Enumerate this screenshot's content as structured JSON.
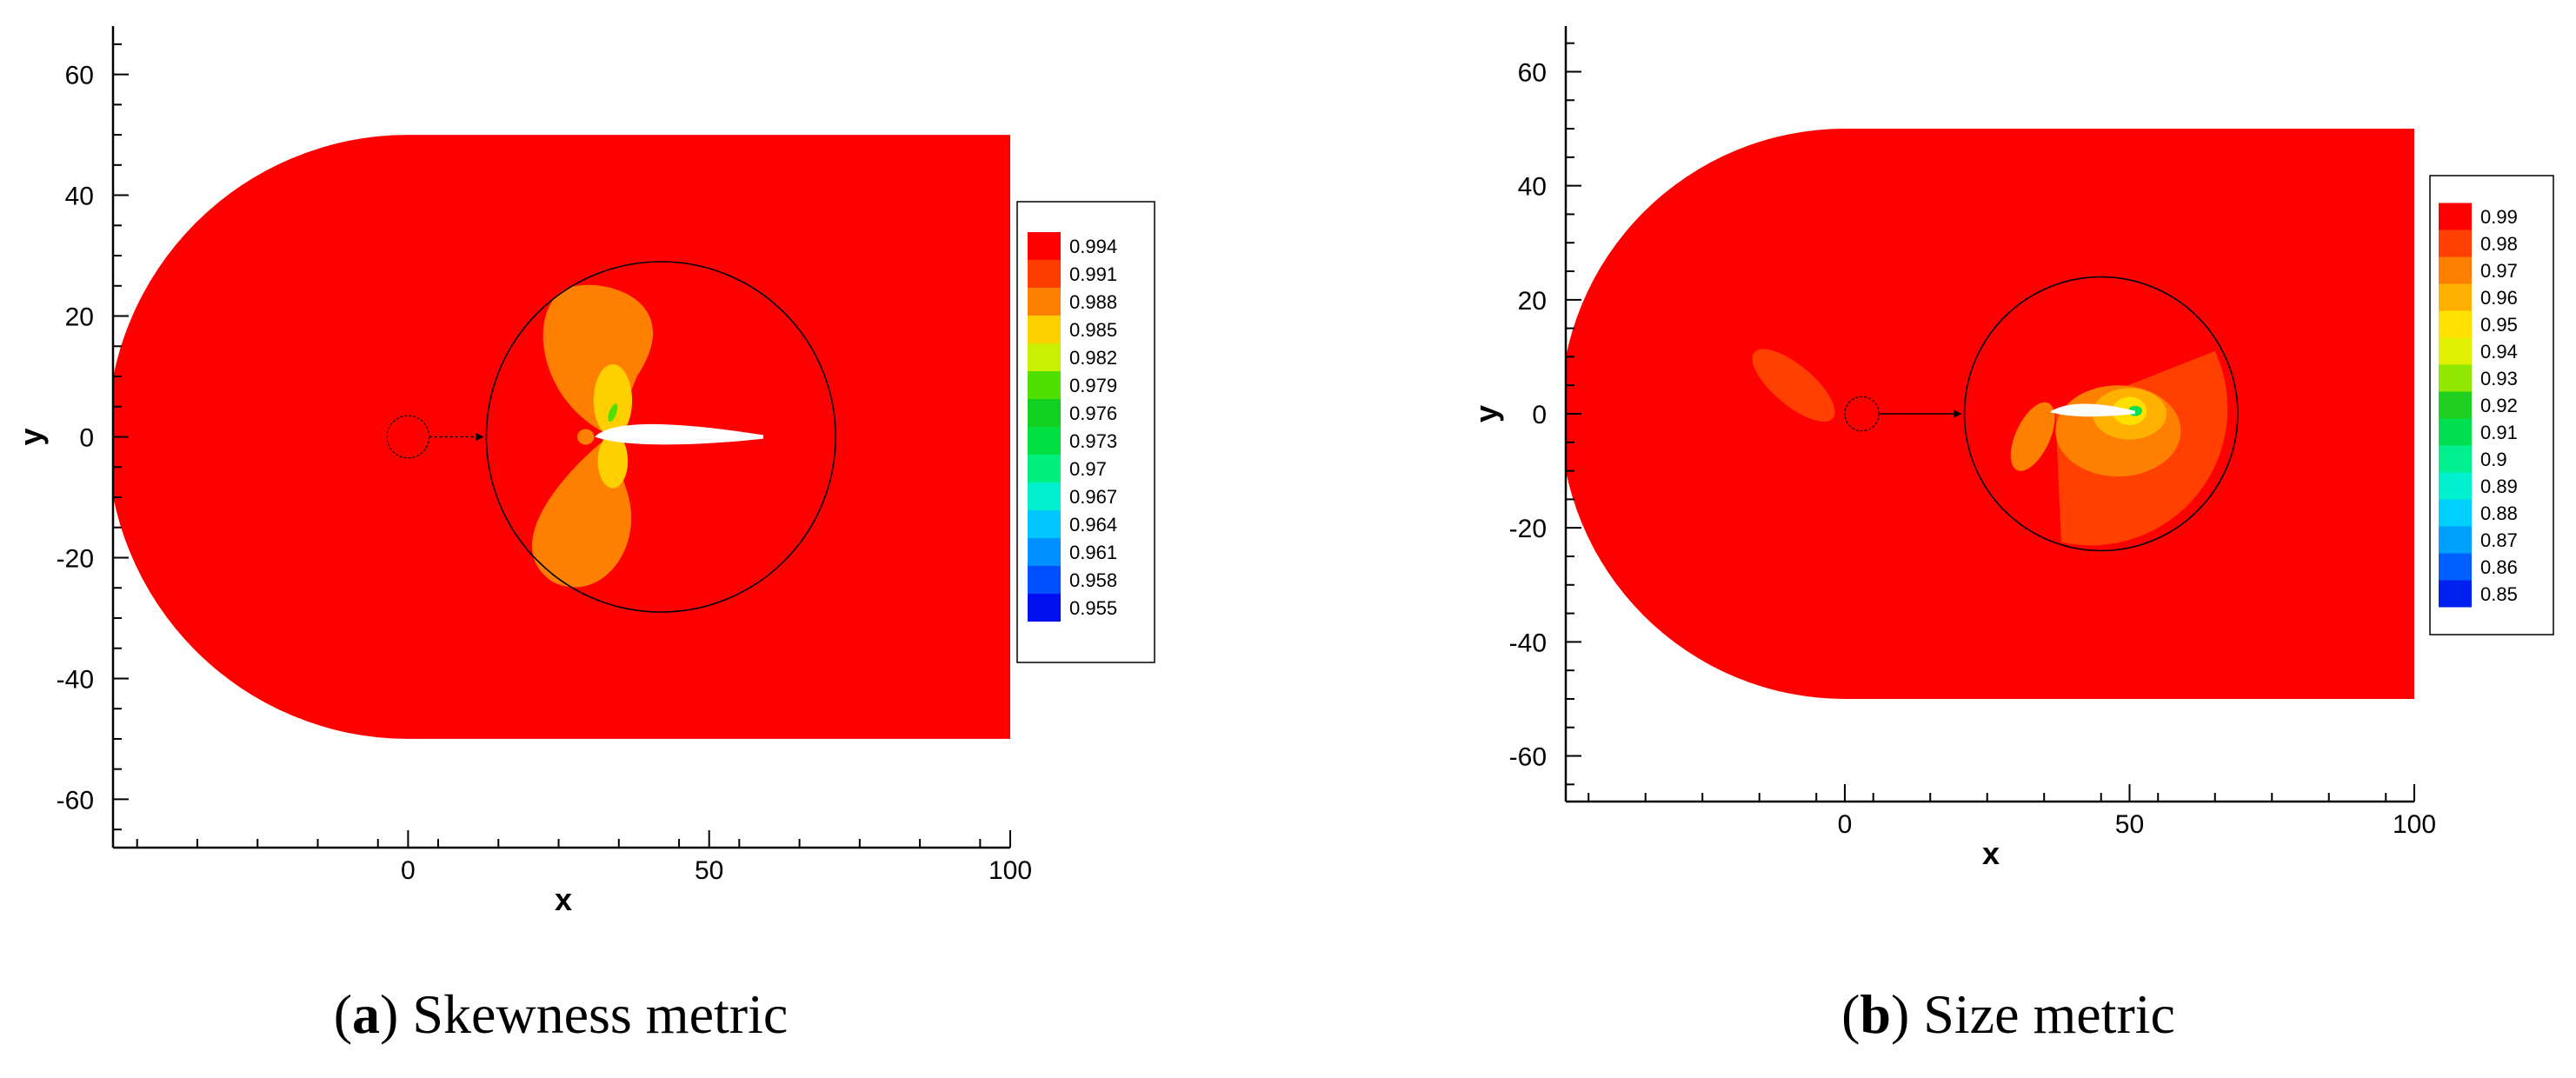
{
  "chart_data": [
    {
      "type": "contour",
      "panel_label": "a",
      "caption": "Skewness metric",
      "xlabel": "x",
      "ylabel": "y",
      "xlim": [
        -49,
        100
      ],
      "ylim": [
        -68,
        68
      ],
      "xticks": [
        0,
        50,
        100
      ],
      "yticks": [
        -60,
        -40,
        -20,
        0,
        20,
        40,
        60
      ],
      "legend_levels": [
        "0.994",
        "0.991",
        "0.988",
        "0.985",
        "0.982",
        "0.979",
        "0.976",
        "0.973",
        "0.97",
        "0.967",
        "0.964",
        "0.961",
        "0.958",
        "0.955"
      ],
      "legend_colors": [
        "#ff0000",
        "#ff3c00",
        "#ff8000",
        "#ffd000",
        "#c8f000",
        "#50e000",
        "#10d020",
        "#00e040",
        "#00f080",
        "#00f0d0",
        "#00c8ff",
        "#0090ff",
        "#0050ff",
        "#0010f0"
      ],
      "refinement_circle": {
        "center": [
          42,
          0
        ],
        "radius": 29
      },
      "source_circle": {
        "center": [
          0,
          0
        ],
        "radius": 3.5
      }
    },
    {
      "type": "contour",
      "panel_label": "b",
      "caption": "Size metric",
      "xlabel": "x",
      "ylabel": "y",
      "xlim": [
        -49,
        100
      ],
      "ylim": [
        -68,
        68
      ],
      "xticks": [
        0,
        50,
        100
      ],
      "yticks": [
        -60,
        -40,
        -20,
        0,
        20,
        40,
        60
      ],
      "legend_levels": [
        "0.99",
        "0.98",
        "0.97",
        "0.96",
        "0.95",
        "0.94",
        "0.93",
        "0.92",
        "0.91",
        "0.9",
        "0.89",
        "0.88",
        "0.87",
        "0.86",
        "0.85"
      ],
      "legend_colors": [
        "#ff0000",
        "#ff4000",
        "#ff8000",
        "#ffb000",
        "#ffe000",
        "#e0f000",
        "#90e800",
        "#20d020",
        "#00e050",
        "#00f090",
        "#00f0d0",
        "#00d0ff",
        "#00a0ff",
        "#0060ff",
        "#0020f0"
      ],
      "refinement_circle": {
        "center": [
          45,
          0
        ],
        "radius": 24
      },
      "source_circle": {
        "center": [
          3,
          0
        ],
        "radius": 3
      }
    }
  ]
}
